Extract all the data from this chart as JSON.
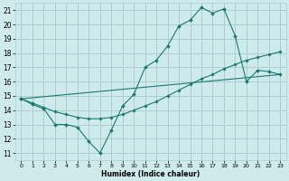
{
  "xlabel": "Humidex (Indice chaleur)",
  "ylabel": "",
  "xlim": [
    -0.5,
    23.5
  ],
  "ylim": [
    10.5,
    21.5
  ],
  "xticks": [
    0,
    1,
    2,
    3,
    4,
    5,
    6,
    7,
    8,
    9,
    10,
    11,
    12,
    13,
    14,
    15,
    16,
    17,
    18,
    19,
    20,
    21,
    22,
    23
  ],
  "yticks": [
    11,
    12,
    13,
    14,
    15,
    16,
    17,
    18,
    19,
    20,
    21
  ],
  "background_color": "#ceeaea",
  "grid_color": "#aacece",
  "line_color": "#1a7a6e",
  "line1_x": [
    0,
    1,
    2,
    3,
    4,
    5,
    6,
    7,
    8,
    9,
    10,
    11,
    12,
    13,
    14,
    15,
    16,
    17,
    18,
    19,
    20,
    21,
    22,
    23
  ],
  "line1_y": [
    14.8,
    14.4,
    14.1,
    13.0,
    13.0,
    12.8,
    11.8,
    11.0,
    12.6,
    14.3,
    15.1,
    17.0,
    17.5,
    18.5,
    19.9,
    20.3,
    21.2,
    20.8,
    21.1,
    19.2,
    16.0,
    16.8,
    16.7,
    16.5
  ],
  "line2_x": [
    0,
    1,
    2,
    3,
    4,
    5,
    6,
    7,
    8,
    9,
    10,
    11,
    12,
    13,
    14,
    15,
    16,
    17,
    18,
    19,
    20,
    21,
    22,
    23
  ],
  "line2_y": [
    14.8,
    14.5,
    14.2,
    13.9,
    13.7,
    13.5,
    13.4,
    13.4,
    13.5,
    13.7,
    14.0,
    14.3,
    14.6,
    15.0,
    15.4,
    15.8,
    16.2,
    16.5,
    16.9,
    17.2,
    17.5,
    17.7,
    17.9,
    18.1
  ],
  "line3_x": [
    0,
    23
  ],
  "line3_y": [
    14.8,
    16.5
  ]
}
